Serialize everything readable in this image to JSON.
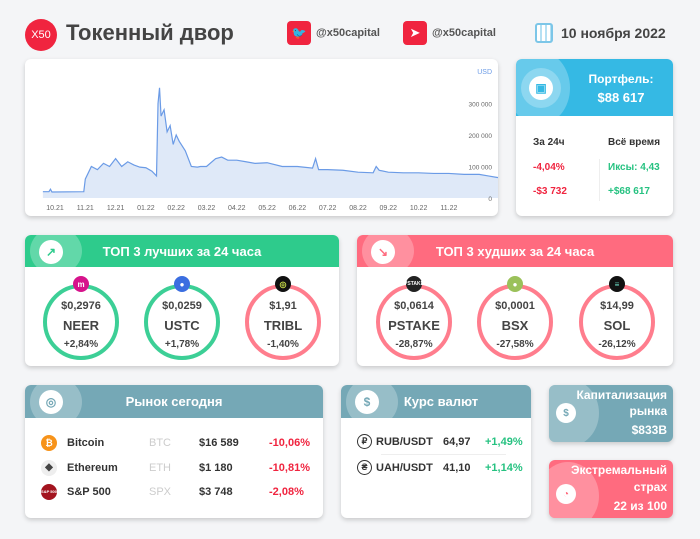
{
  "header": {
    "logo": "X50",
    "title": "Токенный двор",
    "twitter": "@x50capital",
    "telegram": "@x50capital",
    "date": "10 ноября 2022"
  },
  "chart_data": {
    "type": "area",
    "unit_label": "USD",
    "x_ticks": [
      "10.21",
      "11.21",
      "12.21",
      "01.22",
      "02.22",
      "03.22",
      "04.22",
      "05.22",
      "06.22",
      "07.22",
      "08.22",
      "09.22",
      "10.22",
      "11.22"
    ],
    "y_ticks": [
      "0",
      "100 000",
      "200 000",
      "300 000"
    ],
    "ylim": [
      0,
      380000
    ],
    "x": [
      -0.4,
      -0.2,
      -0.15,
      -0.1,
      0.95,
      1.0,
      1.2,
      1.4,
      1.6,
      1.8,
      2.0,
      2.2,
      2.4,
      2.6,
      2.8,
      3.0,
      3.2,
      3.35,
      3.4,
      3.45,
      3.5,
      3.6,
      3.7,
      3.8,
      3.9,
      4.0,
      4.1,
      4.3,
      4.5,
      4.7,
      4.8,
      5.0,
      5.3,
      5.5,
      5.7,
      6.0,
      6.3,
      6.6,
      7.0,
      7.5,
      8.0,
      8.5,
      8.6,
      8.7,
      9.0,
      9.5,
      10.0,
      10.5,
      10.6,
      10.7,
      11.0,
      11.5,
      12.0,
      12.5,
      13.0,
      13.5,
      14.0,
      14.3,
      14.6,
      14.75,
      14.8,
      15.0,
      15.3,
      15.4
    ],
    "y": [
      20000,
      20000,
      28000,
      19000,
      20000,
      60000,
      100000,
      90000,
      110000,
      100000,
      125000,
      100000,
      115000,
      105000,
      98000,
      96000,
      85000,
      70000,
      300000,
      350000,
      260000,
      280000,
      210000,
      230000,
      170000,
      200000,
      180000,
      150000,
      100000,
      98000,
      100000,
      100000,
      125000,
      130000,
      120000,
      120000,
      115000,
      110000,
      112000,
      100000,
      100000,
      95000,
      125000,
      90000,
      90000,
      88000,
      82000,
      80000,
      100000,
      88000,
      82000,
      80000,
      80000,
      78000,
      78000,
      75000,
      75000,
      70000,
      65000,
      65000,
      100000,
      100000,
      102000,
      95000
    ]
  },
  "portfolio": {
    "title": "Портфель:",
    "value": "$88 617",
    "col1": "За 24ч",
    "col2": "Всё время",
    "pct24": "-4,04%",
    "usd24": "-$3 732",
    "x_all": "Иксы: 4,43",
    "usd_all": "+$68 617"
  },
  "best": {
    "title": "ТОП 3 лучших за 24 часа",
    "items": [
      {
        "price": "$0,2976",
        "sym": "NEER",
        "chg": "+2,84%"
      },
      {
        "price": "$0,0259",
        "sym": "USTC",
        "chg": "+1,78%"
      },
      {
        "price": "$1,91",
        "sym": "TRIBL",
        "chg": "-1,40%"
      }
    ]
  },
  "worst": {
    "title": "ТОП 3 худших за 24 часа",
    "items": [
      {
        "price": "$0,0614",
        "sym": "PSTAKE",
        "chg": "-28,87%"
      },
      {
        "price": "$0,0001",
        "sym": "BSX",
        "chg": "-27,58%"
      },
      {
        "price": "$14,99",
        "sym": "SOL",
        "chg": "-26,12%"
      }
    ]
  },
  "market": {
    "title": "Рынок сегодня",
    "rows": [
      {
        "name": "Bitcoin",
        "ticker": "BTC",
        "price": "$16 589",
        "chg": "-10,06%"
      },
      {
        "name": "Ethereum",
        "ticker": "ETH",
        "price": "$1 180",
        "chg": "-10,81%"
      },
      {
        "name": "S&P 500",
        "ticker": "SPX",
        "price": "$3 748",
        "chg": "-2,08%",
        "logo": "S&P 500"
      }
    ]
  },
  "fx": {
    "title": "Курс валют",
    "rows": [
      {
        "pair": "RUB/USDT",
        "rate": "64,97",
        "chg": "+1,49%"
      },
      {
        "pair": "UAH/USDT",
        "rate": "41,10",
        "chg": "+1,14%"
      }
    ]
  },
  "cap": {
    "title1": "Капитализация",
    "title2": "рынка",
    "value": "$833B"
  },
  "fear": {
    "title1": "Экстремальный",
    "title2": "страх",
    "value": "22 из 100"
  },
  "colors": {
    "red": "#f0243f",
    "green": "#26c281",
    "blue": "#35b9e4",
    "teal": "#75a8b6",
    "pink": "#ff6b7f",
    "greenHdr": "#2ecb8c"
  }
}
